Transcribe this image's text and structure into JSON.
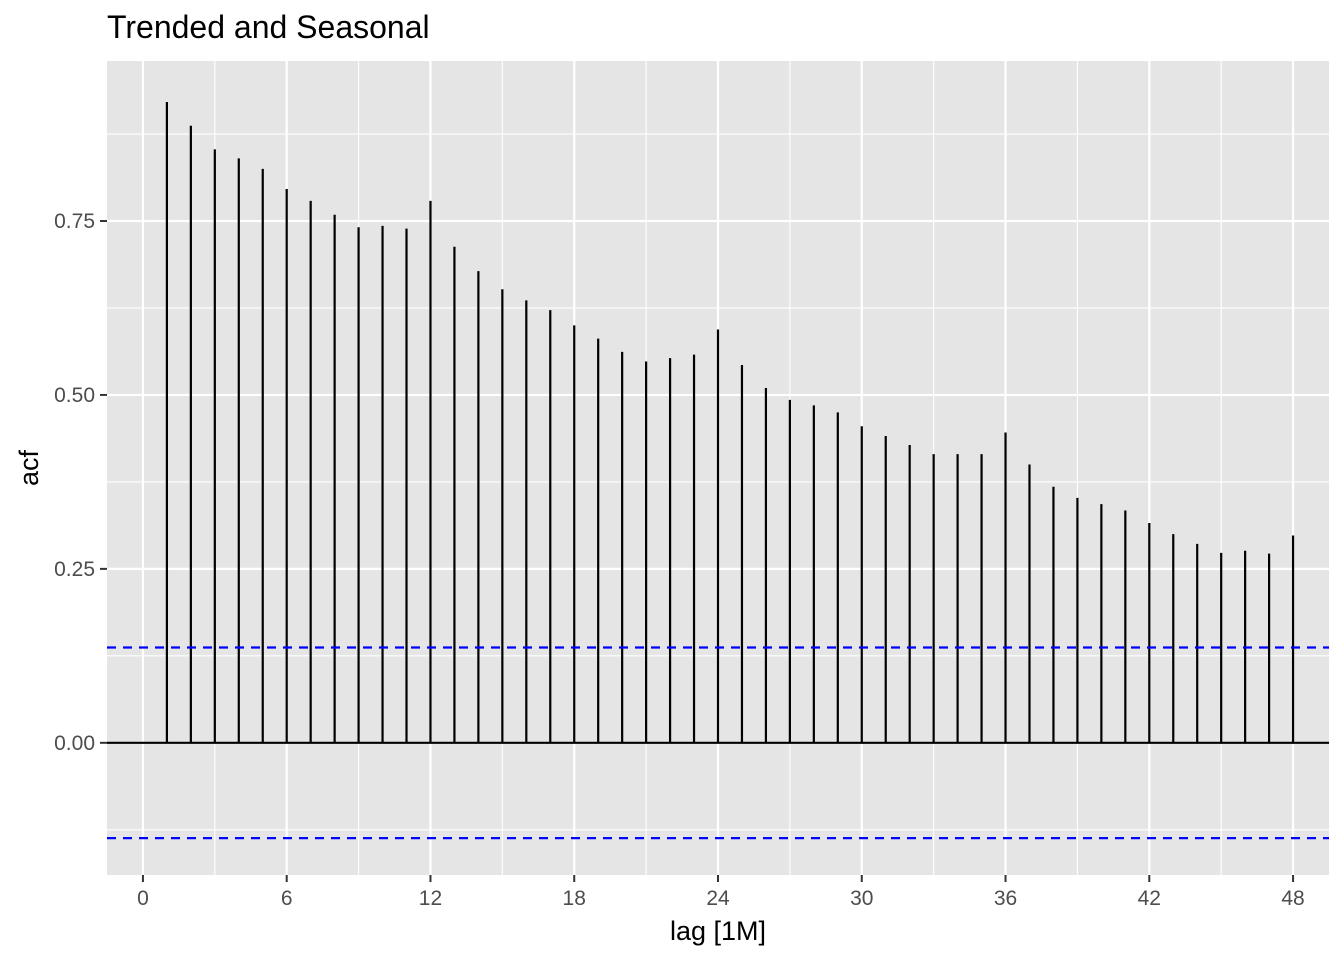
{
  "chart_data": {
    "type": "bar",
    "subtype": "acf-correlogram",
    "title": "Trended and Seasonal",
    "xlabel": "lag [1M]",
    "ylabel": "acf",
    "xlim": [
      -1.5,
      49.5
    ],
    "ylim": [
      -0.19,
      0.98
    ],
    "x_ticks": [
      0,
      6,
      12,
      18,
      24,
      30,
      36,
      42,
      48
    ],
    "x_tick_labels": [
      "0",
      "6",
      "12",
      "18",
      "24",
      "30",
      "36",
      "42",
      "48"
    ],
    "y_ticks": [
      0,
      0.25,
      0.5,
      0.75
    ],
    "y_tick_labels": [
      "0.00",
      "0.25",
      "0.50",
      "0.75"
    ],
    "confidence_bound": 0.137,
    "grid": true,
    "colors": {
      "panel_background": "#e5e5e5",
      "grid_line": "#ffffff",
      "spike": "#000000",
      "zero_line": "#000000",
      "confidence_line": "#0000ff",
      "tick_mark": "#333333"
    },
    "lags": [
      1,
      2,
      3,
      4,
      5,
      6,
      7,
      8,
      9,
      10,
      11,
      12,
      13,
      14,
      15,
      16,
      17,
      18,
      19,
      20,
      21,
      22,
      23,
      24,
      25,
      26,
      27,
      28,
      29,
      30,
      31,
      32,
      33,
      34,
      35,
      36,
      37,
      38,
      39,
      40,
      41,
      42,
      43,
      44,
      45,
      46,
      47,
      48
    ],
    "acf": [
      0.921,
      0.887,
      0.853,
      0.84,
      0.825,
      0.796,
      0.779,
      0.759,
      0.741,
      0.743,
      0.739,
      0.779,
      0.713,
      0.678,
      0.652,
      0.636,
      0.622,
      0.6,
      0.581,
      0.562,
      0.548,
      0.553,
      0.558,
      0.594,
      0.543,
      0.51,
      0.493,
      0.485,
      0.475,
      0.455,
      0.441,
      0.428,
      0.415,
      0.415,
      0.415,
      0.446,
      0.4,
      0.368,
      0.352,
      0.343,
      0.334,
      0.316,
      0.3,
      0.286,
      0.273,
      0.276,
      0.272,
      0.298
    ]
  }
}
